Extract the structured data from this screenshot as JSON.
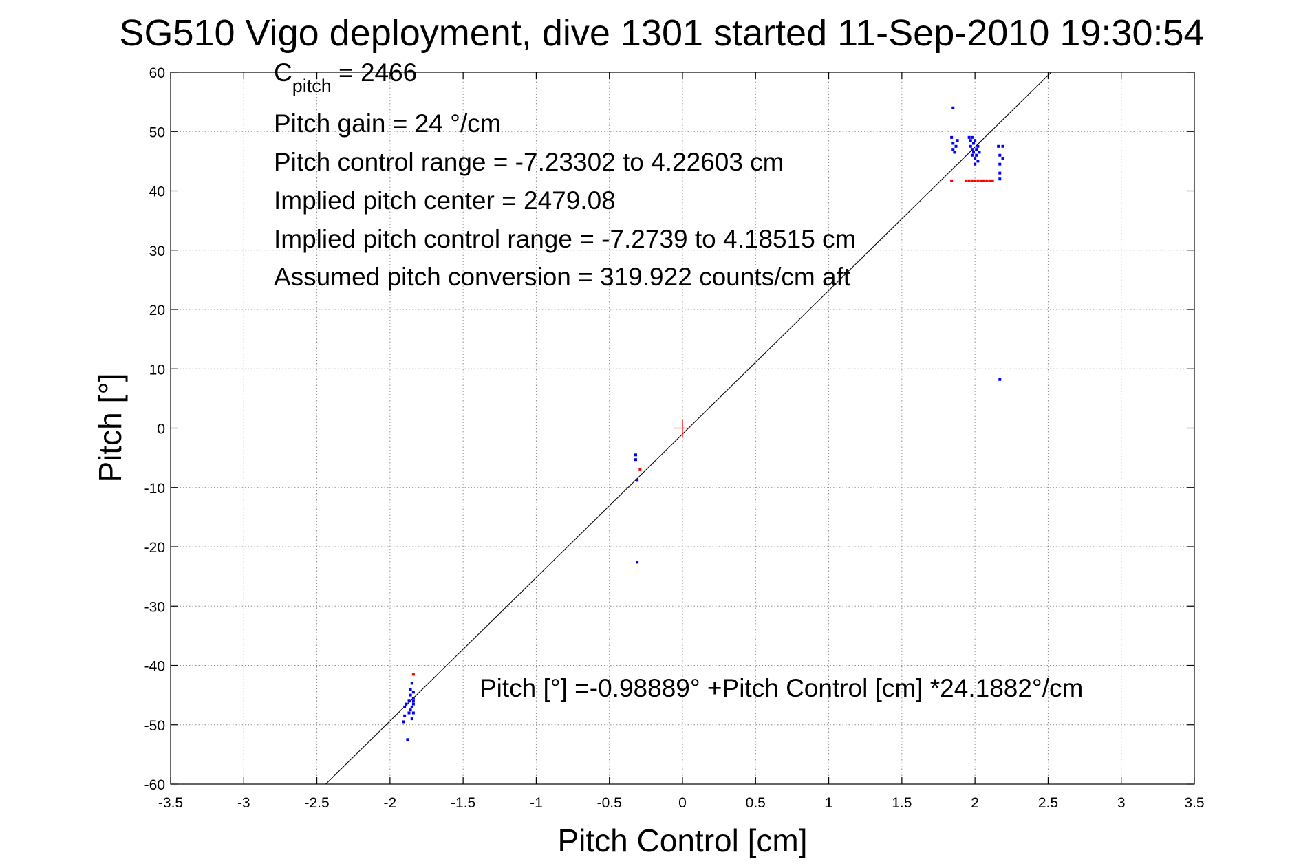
{
  "chart_data": {
    "type": "scatter",
    "title": "SG510 Vigo deployment, dive 1301 started 11-Sep-2010 19:30:54",
    "xlabel": "Pitch Control [cm]",
    "ylabel": "Pitch [°]",
    "xlim": [
      -3.5,
      3.5
    ],
    "ylim": [
      -60,
      60
    ],
    "xticks": [
      -3.5,
      -3,
      -2.5,
      -2,
      -1.5,
      -1,
      -0.5,
      0,
      0.5,
      1,
      1.5,
      2,
      2.5,
      3,
      3.5
    ],
    "xtick_labels": [
      "-3.5",
      "-3",
      "-2.5",
      "-2",
      "-1.5",
      "-1",
      "-0.5",
      "0",
      "0.5",
      "1",
      "1.5",
      "2",
      "2.5",
      "3",
      "3.5"
    ],
    "yticks": [
      -60,
      -50,
      -40,
      -30,
      -20,
      -10,
      0,
      10,
      20,
      30,
      40,
      50,
      60
    ],
    "ytick_labels": [
      "-60",
      "-50",
      "-40",
      "-30",
      "-20",
      "-10",
      "0",
      "10",
      "20",
      "30",
      "40",
      "50",
      "60"
    ],
    "grid": true,
    "annotations": {
      "c_pitch_main": "C",
      "c_pitch_sub": "pitch",
      "c_pitch_value": " = 2466",
      "lines": [
        "Pitch gain = 24 °/cm",
        "Pitch control range = -7.23302 to 4.22603 cm",
        "Implied pitch center = 2479.08",
        "Implied pitch control range = -7.2739 to 4.18515 cm",
        "Assumed pitch conversion = 319.922 counts/cm aft"
      ],
      "fit_equation": "Pitch [°] =-0.98889° +Pitch Control [cm] *24.1882°/cm"
    },
    "fit_line": {
      "intercept": -0.98889,
      "slope": 24.1882
    },
    "center_marker": {
      "x": 0,
      "y": 0,
      "color": "#ff0000"
    },
    "series": [
      {
        "color": "#0000ff",
        "points": [
          [
            -1.9,
            -47.0
          ],
          [
            -1.9,
            -48.5
          ],
          [
            -1.91,
            -49.5
          ],
          [
            -1.89,
            -46.5
          ],
          [
            -1.88,
            -52.5
          ],
          [
            -1.87,
            -48.0
          ],
          [
            -1.87,
            -46.0
          ],
          [
            -1.86,
            -47.5
          ],
          [
            -1.86,
            -45.0
          ],
          [
            -1.86,
            -44.0
          ],
          [
            -1.85,
            -43.0
          ],
          [
            -1.85,
            -47.0
          ],
          [
            -1.85,
            -49.0
          ],
          [
            -1.84,
            -46.0
          ],
          [
            -1.84,
            -45.5
          ],
          [
            -1.84,
            -44.5
          ],
          [
            -1.84,
            -46.5
          ],
          [
            -1.84,
            -48.0
          ],
          [
            -0.32,
            -4.5
          ],
          [
            -0.32,
            -5.3
          ],
          [
            -0.31,
            -8.8
          ],
          [
            -0.31,
            -22.6
          ],
          [
            1.85,
            54.0
          ],
          [
            1.84,
            49.0
          ],
          [
            1.85,
            48.0
          ],
          [
            1.85,
            47.0
          ],
          [
            1.86,
            46.5
          ],
          [
            1.87,
            47.5
          ],
          [
            1.88,
            48.5
          ],
          [
            1.96,
            49.0
          ],
          [
            1.97,
            48.5
          ],
          [
            1.97,
            47.5
          ],
          [
            1.98,
            49.0
          ],
          [
            1.98,
            47.0
          ],
          [
            1.98,
            46.0
          ],
          [
            1.99,
            48.0
          ],
          [
            1.99,
            46.5
          ],
          [
            2.0,
            45.5
          ],
          [
            2.0,
            44.5
          ],
          [
            2.0,
            48.5
          ],
          [
            2.01,
            47.0
          ],
          [
            2.01,
            46.0
          ],
          [
            2.02,
            45.0
          ],
          [
            2.02,
            47.5
          ],
          [
            2.03,
            46.5
          ],
          [
            2.16,
            47.5
          ],
          [
            2.17,
            46.0
          ],
          [
            2.17,
            44.5
          ],
          [
            2.17,
            43.0
          ],
          [
            2.17,
            42.0
          ],
          [
            2.19,
            47.5
          ],
          [
            2.19,
            45.5
          ],
          [
            2.17,
            8.2
          ]
        ]
      },
      {
        "color": "#ff0000",
        "points": [
          [
            -1.84,
            -41.5
          ],
          [
            -0.29,
            -7.0
          ],
          [
            1.84,
            41.7
          ],
          [
            1.94,
            41.7
          ],
          [
            1.96,
            41.7
          ],
          [
            1.98,
            41.7
          ],
          [
            2.0,
            41.7
          ],
          [
            2.02,
            41.7
          ],
          [
            2.04,
            41.7
          ],
          [
            2.06,
            41.7
          ],
          [
            2.08,
            41.7
          ],
          [
            2.1,
            41.7
          ],
          [
            2.12,
            41.7
          ]
        ]
      }
    ]
  }
}
